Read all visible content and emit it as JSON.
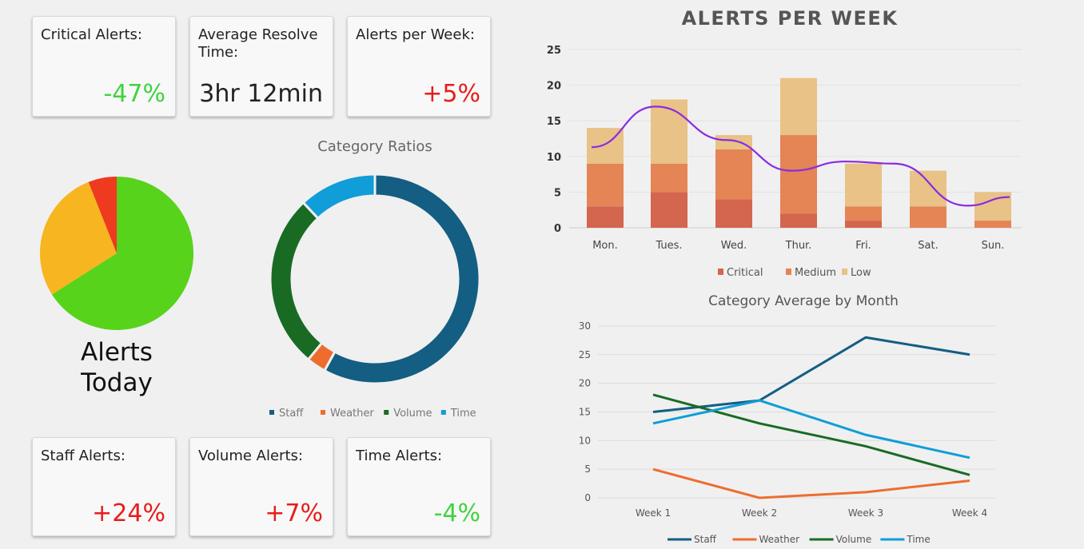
{
  "cards": [
    {
      "label": "Critical Alerts:",
      "value": "-47%",
      "color": "#3ed43e"
    },
    {
      "label": "Average Resolve Time:",
      "value": "3hr 12min",
      "color": "#222222"
    },
    {
      "label": "Alerts per Week:",
      "value": "+5%",
      "color": "#e81c1c"
    },
    {
      "label": "Staff Alerts:",
      "value": "+24%",
      "color": "#e81c1c"
    },
    {
      "label": "Volume Alerts:",
      "value": "+7%",
      "color": "#e81c1c"
    },
    {
      "label": "Time Alerts:",
      "value": "-4%",
      "color": "#3ed43e"
    }
  ],
  "alerts_today": {
    "label_line1": "Alerts",
    "label_line2": "Today"
  },
  "chart_data": [
    {
      "type": "pie",
      "title": "",
      "slices": [
        {
          "value": 66,
          "color": "#58d31b"
        },
        {
          "value": 28,
          "color": "#f7b51f"
        },
        {
          "value": 6,
          "color": "#ee3a1e"
        }
      ]
    },
    {
      "type": "pie",
      "subtype": "donut",
      "title": "Category Ratios",
      "legend": "bottom",
      "slices": [
        {
          "name": "Staff",
          "value": 58,
          "color": "#135e82"
        },
        {
          "name": "Weather",
          "value": 3,
          "color": "#ed6d2f"
        },
        {
          "name": "Volume",
          "value": 27,
          "color": "#196b24"
        },
        {
          "name": "Time",
          "value": 12,
          "color": "#109dd8"
        }
      ]
    },
    {
      "type": "bar",
      "stacked": true,
      "title": "ALERTS PER WEEK",
      "legend": "bottom",
      "ylim": [
        0,
        25
      ],
      "yticks": [
        0,
        5,
        10,
        15,
        20,
        25
      ],
      "categories": [
        "Mon.",
        "Tues.",
        "Wed.",
        "Thur.",
        "Fri.",
        "Sat.",
        "Sun."
      ],
      "series": [
        {
          "name": "Critical",
          "color": "#d4654f",
          "values": [
            3,
            5,
            4,
            2,
            1,
            0,
            0
          ]
        },
        {
          "name": "Medium",
          "color": "#e58455",
          "values": [
            6,
            4,
            7,
            11,
            2,
            3,
            1
          ]
        },
        {
          "name": "Low",
          "color": "#e8c286",
          "values": [
            5,
            9,
            2,
            8,
            6,
            5,
            4
          ]
        }
      ],
      "trend_line": {
        "color": "#8a2be2",
        "values": [
          11.3,
          17,
          12.3,
          8,
          9.3,
          9,
          3.1,
          4.3
        ]
      }
    },
    {
      "type": "line",
      "title": "Category Average by Month",
      "legend": "bottom",
      "ylim": [
        0,
        30
      ],
      "yticks": [
        0,
        5,
        10,
        15,
        20,
        25,
        30
      ],
      "grid": true,
      "categories": [
        "Week 1",
        "Week 2",
        "Week 3",
        "Week 4"
      ],
      "series": [
        {
          "name": "Staff",
          "color": "#135e82",
          "values": [
            15,
            17,
            28,
            25
          ]
        },
        {
          "name": "Weather",
          "color": "#ed6d2f",
          "values": [
            5,
            0,
            1,
            3
          ]
        },
        {
          "name": "Volume",
          "color": "#196b24",
          "values": [
            18,
            13,
            9,
            4
          ]
        },
        {
          "name": "Time",
          "color": "#109dd8",
          "values": [
            13,
            17,
            11,
            7
          ]
        }
      ]
    }
  ]
}
